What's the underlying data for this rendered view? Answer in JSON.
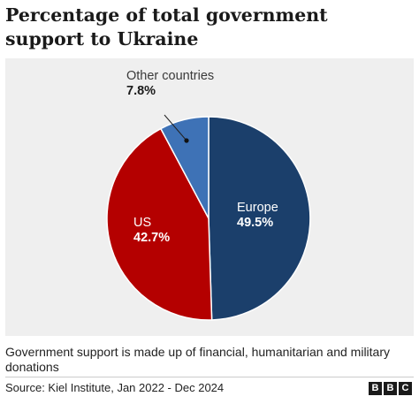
{
  "chart_data": {
    "type": "pie",
    "title": "Percentage of total government support to Ukraine",
    "slices": [
      {
        "label": "Europe",
        "value": 49.5,
        "display": "49.5%",
        "color": "#1b3f6b"
      },
      {
        "label": "US",
        "value": 42.7,
        "display": "42.7%",
        "color": "#b40000"
      },
      {
        "label": "Other countries",
        "value": 7.8,
        "display": "7.8%",
        "color": "#3e72b6"
      }
    ],
    "start_angle_deg": 0,
    "direction": "clockwise",
    "legend": "none (direct labels)"
  },
  "note": "Government support is made up of financial, humanitarian and military donations",
  "source": "Source: Kiel Institute, Jan 2022 - Dec 2024",
  "logo": {
    "letters": [
      "B",
      "B",
      "C"
    ]
  }
}
